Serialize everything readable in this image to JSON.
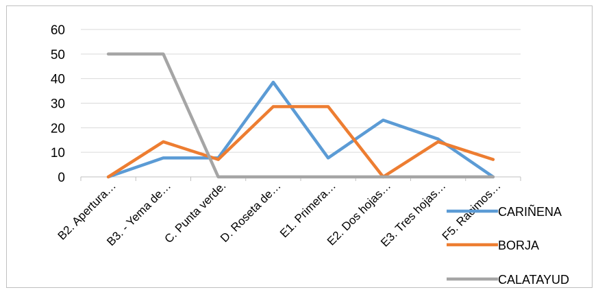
{
  "chart_data": {
    "type": "line",
    "title": "",
    "xlabel": "",
    "ylabel": "",
    "ylim": [
      0,
      60
    ],
    "yticks": [
      0,
      10,
      20,
      30,
      40,
      50,
      60
    ],
    "grid": true,
    "legend_position": "bottom-right",
    "categories": [
      "B2. Apertura…",
      "B3.  - Yema de…",
      "C. Punta verde.",
      "D. Roseta de…",
      "E1.  Primera…",
      "E2. Dos hojas…",
      "E3. Tres hojas…",
      "F5. Racimos…"
    ],
    "series": [
      {
        "name": "CARIÑENA",
        "color": "#5B9BD5",
        "values": [
          0,
          7.7,
          7.7,
          38.5,
          7.7,
          23.1,
          15.4,
          0
        ]
      },
      {
        "name": "BORJA",
        "color": "#ED7D31",
        "values": [
          0,
          14.3,
          7.1,
          28.6,
          28.6,
          0,
          14.3,
          7.1
        ]
      },
      {
        "name": "CALATAYUD",
        "color": "#A5A5A5",
        "values": [
          50,
          50,
          0,
          0,
          0,
          0,
          0,
          0
        ]
      }
    ]
  }
}
